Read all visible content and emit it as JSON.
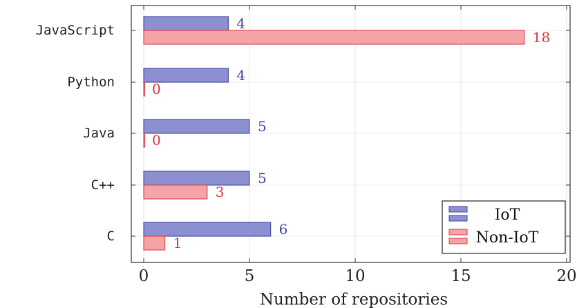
{
  "chart_data": {
    "type": "bar",
    "orientation": "horizontal",
    "categories": [
      "JavaScript",
      "Python",
      "Java",
      "C++",
      "C"
    ],
    "series": [
      {
        "name": "IoT",
        "values": [
          4,
          4,
          5,
          5,
          6
        ],
        "color": "#8c8fd0",
        "stroke": "#4a50a8",
        "label_color": "#3f48a6"
      },
      {
        "name": "Non-IoT",
        "values": [
          18,
          0,
          0,
          3,
          1
        ],
        "color": "#f4a3a6",
        "stroke": "#e04a55",
        "label_color": "#e0323c"
      }
    ],
    "xlabel": "Number of repositories",
    "ylabel": "",
    "title": "",
    "xlim": [
      0,
      20
    ],
    "xticks": [
      0,
      5,
      10,
      15,
      20
    ],
    "grid": true,
    "legend_position": "bottom-right"
  }
}
